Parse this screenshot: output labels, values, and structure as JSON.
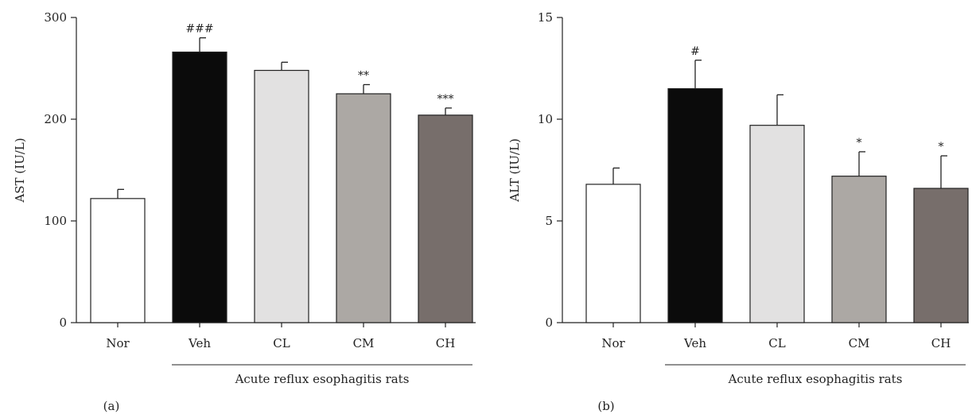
{
  "colors": {
    "Nor": "#ffffff",
    "Veh": "#0b0b0b",
    "CL": "#e2e1e1",
    "CM": "#aca8a4",
    "CH": "#776e6b",
    "axis": "#222222",
    "bar_stroke": "#222222"
  },
  "chart_data": [
    {
      "type": "bar",
      "panel_label": "(a)",
      "ylabel": "AST (IU/L)",
      "xlabel": "",
      "group_label": "Acute reflux esophagitis rats",
      "group_categories": [
        "Veh",
        "CL",
        "CM",
        "CH"
      ],
      "categories": [
        "Nor",
        "Veh",
        "CL",
        "CM",
        "CH"
      ],
      "values": [
        122,
        266,
        248,
        225,
        204
      ],
      "errors": [
        9,
        14,
        8,
        9,
        7
      ],
      "significance": [
        "",
        "###",
        "",
        "**",
        "***"
      ],
      "ylim": [
        0,
        300
      ],
      "yticks": [
        0,
        100,
        200,
        300
      ],
      "grid": false
    },
    {
      "type": "bar",
      "panel_label": "(b)",
      "ylabel": "ALT (IU/L)",
      "xlabel": "",
      "group_label": "Acute reflux esophagitis rats",
      "group_categories": [
        "Veh",
        "CL",
        "CM",
        "CH"
      ],
      "categories": [
        "Nor",
        "Veh",
        "CL",
        "CM",
        "CH"
      ],
      "values": [
        6.8,
        11.5,
        9.7,
        7.2,
        6.6
      ],
      "errors": [
        0.8,
        1.4,
        1.5,
        1.2,
        1.6
      ],
      "significance": [
        "",
        "#",
        "",
        "*",
        "*"
      ],
      "ylim": [
        0,
        15
      ],
      "yticks": [
        0,
        5,
        10,
        15
      ],
      "grid": false
    }
  ]
}
